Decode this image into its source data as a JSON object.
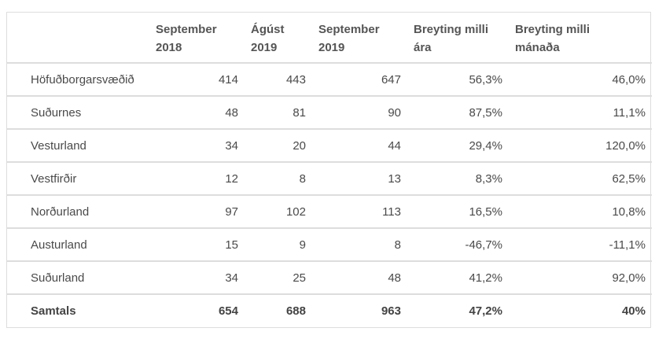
{
  "table": {
    "headers": [
      [
        "",
        ""
      ],
      [
        "September",
        "2018"
      ],
      [
        "Ágúst",
        "2019"
      ],
      [
        "September",
        "2019"
      ],
      [
        "Breyting milli",
        "ára"
      ],
      [
        "Breyting milli",
        "mánaða"
      ]
    ],
    "rows": [
      [
        "Höfuðborgarsvæðið",
        "414",
        "443",
        "647",
        "56,3%",
        "46,0%"
      ],
      [
        "Suðurnes",
        "48",
        "81",
        "90",
        "87,5%",
        "11,1%"
      ],
      [
        "Vesturland",
        "34",
        "20",
        "44",
        "29,4%",
        "120,0%"
      ],
      [
        "Vestfirðir",
        "12",
        "8",
        "13",
        "8,3%",
        "62,5%"
      ],
      [
        "Norðurland",
        "97",
        "102",
        "113",
        "16,5%",
        "10,8%"
      ],
      [
        "Austurland",
        "15",
        "9",
        "8",
        "-46,7%",
        "-11,1%"
      ],
      [
        "Suðurland",
        "34",
        "25",
        "48",
        "41,2%",
        "92,0%"
      ],
      [
        "Samtals",
        "654",
        "688",
        "963",
        "47,2%",
        "40%"
      ]
    ]
  }
}
